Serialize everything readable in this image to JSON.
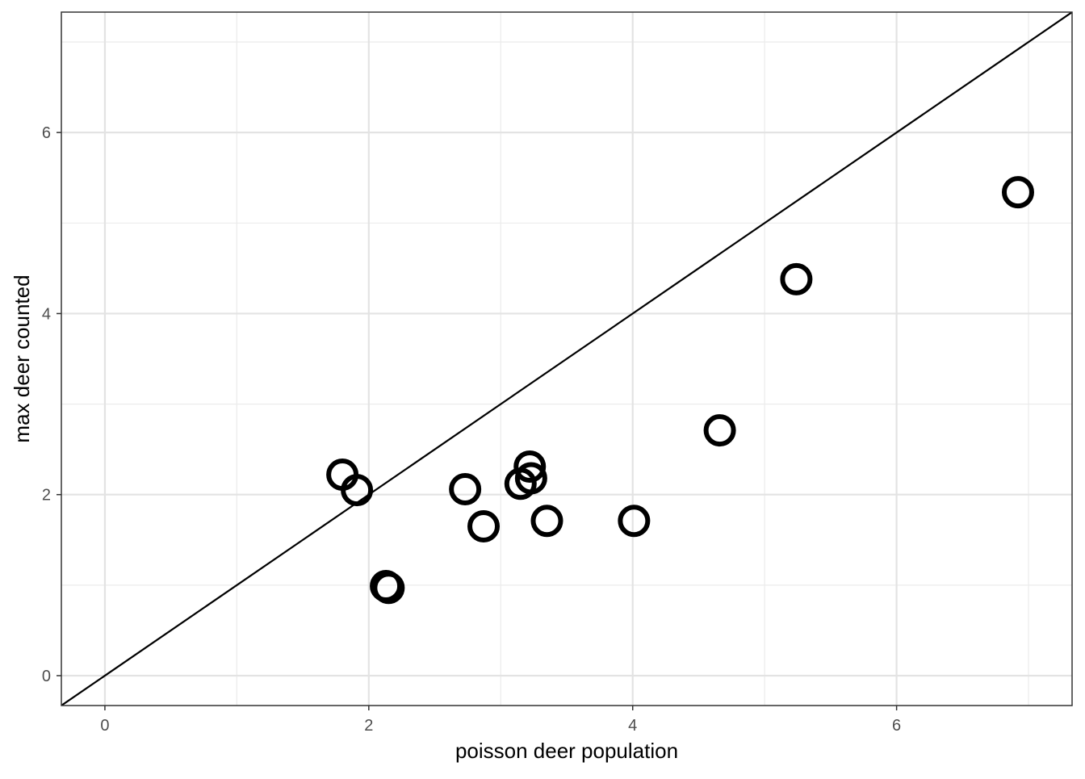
{
  "chart_data": {
    "type": "scatter",
    "title": "",
    "xlabel": "poisson deer population",
    "ylabel": "max deer counted",
    "xlim": [
      -0.33,
      7.33
    ],
    "ylim": [
      -0.33,
      7.33
    ],
    "x_ticks": [
      0,
      2,
      4,
      6
    ],
    "y_ticks": [
      0,
      2,
      4,
      6
    ],
    "x_tick_labels": [
      "0",
      "2",
      "4",
      "6"
    ],
    "y_tick_labels": [
      "0",
      "2",
      "4",
      "6"
    ],
    "grid": true,
    "theme": "black-and-white",
    "reference_line": {
      "type": "identity",
      "slope": 1,
      "intercept": 0,
      "color": "#000000"
    },
    "marker": {
      "shape": "open-circle",
      "color": "#000000"
    },
    "points": [
      {
        "x": 1.8,
        "y": 2.22
      },
      {
        "x": 1.91,
        "y": 2.05
      },
      {
        "x": 2.13,
        "y": 0.99
      },
      {
        "x": 2.15,
        "y": 0.97
      },
      {
        "x": 2.73,
        "y": 2.06
      },
      {
        "x": 2.87,
        "y": 1.65
      },
      {
        "x": 3.15,
        "y": 2.12
      },
      {
        "x": 3.22,
        "y": 2.31
      },
      {
        "x": 3.23,
        "y": 2.18
      },
      {
        "x": 3.35,
        "y": 1.71
      },
      {
        "x": 4.01,
        "y": 1.71
      },
      {
        "x": 4.66,
        "y": 2.71
      },
      {
        "x": 5.24,
        "y": 4.38
      },
      {
        "x": 6.92,
        "y": 5.34
      }
    ]
  }
}
